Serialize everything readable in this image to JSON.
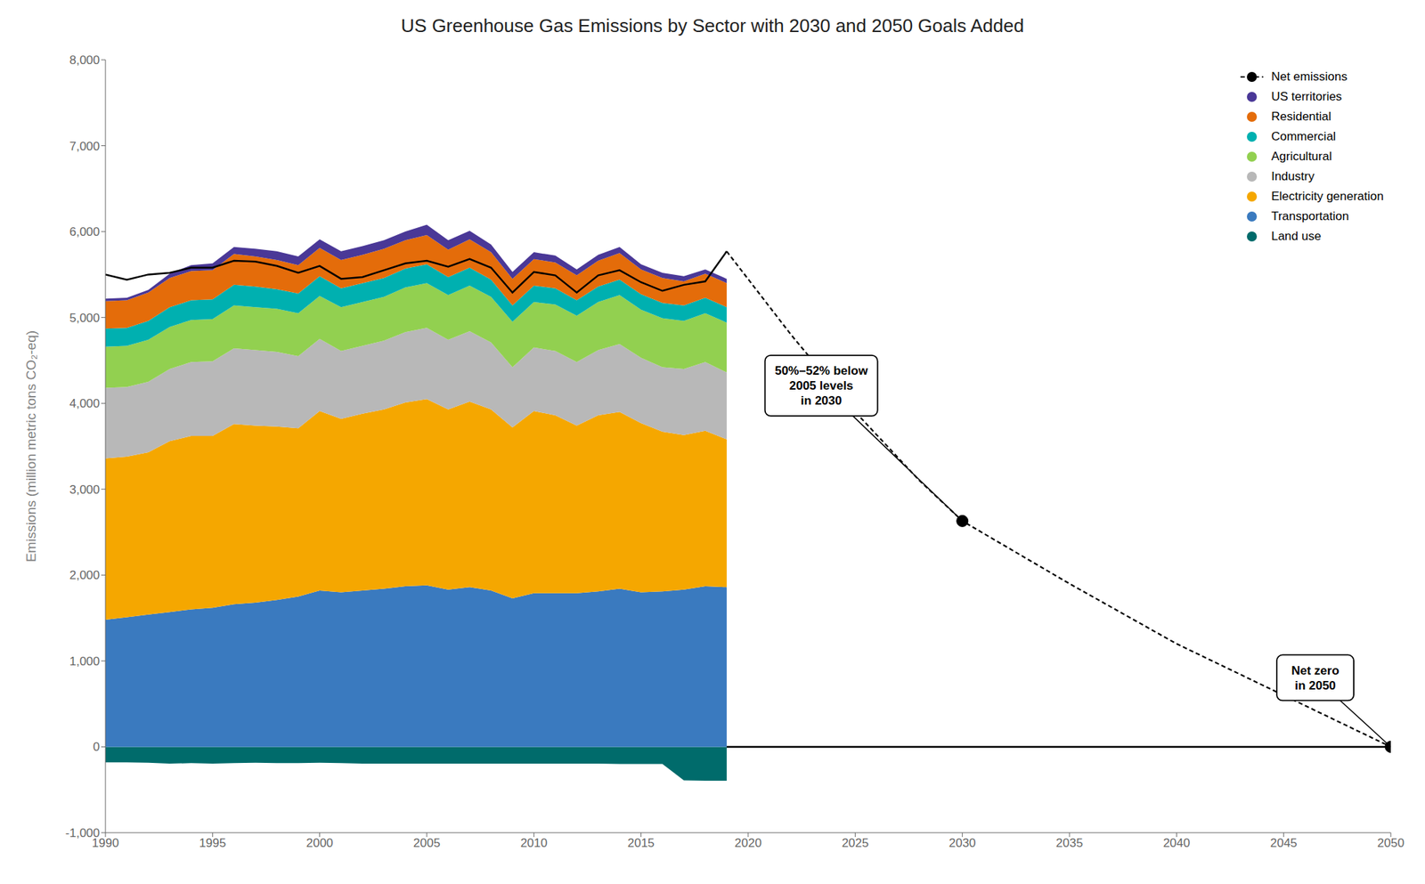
{
  "chart_data": {
    "type": "area",
    "title": "US Greenhouse Gas Emissions by Sector with 2030 and 2050 Goals Added",
    "y_label": "Emissions (million metric tons CO₂-eq)",
    "stacked": true,
    "grid": false,
    "legend": "upper right",
    "x": [
      1990,
      1991,
      1992,
      1993,
      1994,
      1995,
      1996,
      1997,
      1998,
      1999,
      2000,
      2001,
      2002,
      2003,
      2004,
      2005,
      2006,
      2007,
      2008,
      2009,
      2010,
      2011,
      2012,
      2013,
      2014,
      2015,
      2016,
      2017,
      2018,
      2019
    ],
    "series": [
      {
        "name": "Net emissions",
        "type": "line",
        "line_style": "solid",
        "color": "#000000",
        "values": [
          5500,
          5440,
          5500,
          5520,
          5580,
          5580,
          5660,
          5650,
          5600,
          5520,
          5600,
          5450,
          5470,
          5550,
          5630,
          5660,
          5590,
          5680,
          5580,
          5290,
          5530,
          5490,
          5290,
          5490,
          5550,
          5410,
          5310,
          5380,
          5420,
          5770
        ]
      },
      {
        "name": "US territories",
        "type": "area",
        "color": "#4a3897",
        "values": [
          30,
          30,
          30,
          50,
          70,
          80,
          80,
          90,
          100,
          100,
          100,
          100,
          100,
          100,
          100,
          120,
          110,
          100,
          90,
          80,
          80,
          80,
          70,
          70,
          70,
          60,
          60,
          60,
          50,
          50
        ]
      },
      {
        "name": "Residential",
        "type": "area",
        "color": "#e46c0a",
        "values": [
          320,
          320,
          330,
          340,
          340,
          340,
          360,
          350,
          340,
          330,
          330,
          330,
          330,
          340,
          330,
          340,
          320,
          330,
          320,
          310,
          310,
          300,
          290,
          300,
          310,
          290,
          290,
          280,
          280,
          280
        ]
      },
      {
        "name": "Commercial",
        "type": "area",
        "color": "#00b0b0",
        "values": [
          210,
          210,
          220,
          230,
          230,
          230,
          240,
          240,
          230,
          230,
          230,
          220,
          220,
          220,
          220,
          220,
          210,
          210,
          200,
          190,
          190,
          190,
          180,
          180,
          180,
          180,
          180,
          180,
          180,
          180
        ]
      },
      {
        "name": "Agricultural",
        "type": "area",
        "color": "#92d050",
        "values": [
          480,
          480,
          490,
          490,
          490,
          490,
          500,
          500,
          500,
          500,
          500,
          510,
          510,
          510,
          520,
          520,
          520,
          530,
          530,
          530,
          530,
          540,
          540,
          560,
          570,
          560,
          570,
          560,
          570,
          580
        ]
      },
      {
        "name": "Industry",
        "type": "area",
        "color": "#b8b8b8",
        "values": [
          820,
          810,
          820,
          840,
          860,
          870,
          880,
          880,
          870,
          840,
          840,
          790,
          790,
          800,
          820,
          830,
          810,
          820,
          780,
          700,
          740,
          750,
          740,
          760,
          790,
          760,
          750,
          770,
          800,
          780
        ]
      },
      {
        "name": "Electricity generation",
        "type": "area",
        "color": "#f5a700",
        "values": [
          1880,
          1870,
          1890,
          1990,
          2020,
          2000,
          2100,
          2060,
          2020,
          1960,
          2090,
          2020,
          2060,
          2090,
          2140,
          2170,
          2100,
          2160,
          2110,
          1990,
          2120,
          2070,
          1950,
          2050,
          2060,
          1970,
          1860,
          1800,
          1810,
          1720
        ]
      },
      {
        "name": "Transportation",
        "type": "area",
        "color": "#3a7abf",
        "values": [
          1480,
          1510,
          1540,
          1570,
          1600,
          1620,
          1660,
          1680,
          1710,
          1750,
          1820,
          1800,
          1820,
          1840,
          1870,
          1880,
          1830,
          1860,
          1820,
          1730,
          1790,
          1790,
          1790,
          1810,
          1840,
          1800,
          1810,
          1830,
          1870,
          1860
        ]
      },
      {
        "name": "Land use",
        "type": "area",
        "color": "#006b6b",
        "values": [
          -180,
          -180,
          -185,
          -195,
          -190,
          -195,
          -190,
          -185,
          -190,
          -190,
          -185,
          -190,
          -195,
          -195,
          -195,
          -195,
          -195,
          -195,
          -195,
          -195,
          -195,
          -195,
          -195,
          -195,
          -200,
          -200,
          -200,
          -390,
          -395,
          -395
        ]
      },
      {
        "type": "line",
        "line_style": "dashed",
        "color": "#000000",
        "x": [
          2019,
          2022,
          2025,
          2028,
          2030,
          2035,
          2040,
          2045,
          2050
        ],
        "values": [
          5770,
          4800,
          3900,
          3100,
          2630,
          1900,
          1200,
          600,
          0
        ]
      },
      {
        "type": "scatter",
        "marker": "circle",
        "color": "#000000",
        "x": [
          2030,
          2050
        ],
        "values": [
          2630,
          0
        ]
      },
      {
        "type": "line",
        "line_style": "solid",
        "color": "#000000",
        "x": [
          2019,
          2050
        ],
        "values": [
          0,
          0
        ]
      }
    ],
    "annotations": [
      {
        "text": "50%–52% below\n2005 levels\nin 2030",
        "x": 2030,
        "y": 2630
      },
      {
        "text": "Net zero\nin 2050",
        "x": 2050,
        "y": 0
      }
    ],
    "xlim": [
      1990,
      2050
    ],
    "xticks": [
      1990,
      1995,
      2000,
      2005,
      2010,
      2015,
      2020,
      2025,
      2030,
      2035,
      2040,
      2045,
      2050
    ],
    "ylim": [
      -1000,
      8000
    ],
    "yticks": [
      {
        "value": -1000,
        "label": "-1,000"
      },
      0,
      {
        "value": 1000,
        "label": "1,000"
      },
      {
        "value": 2000,
        "label": "2,000"
      },
      {
        "value": 3000,
        "label": "3,000"
      },
      {
        "value": 4000,
        "label": "4,000"
      },
      {
        "value": 5000,
        "label": "5,000"
      },
      {
        "value": 6000,
        "label": "6,000"
      },
      {
        "value": 7000,
        "label": "7,000"
      },
      {
        "value": 8000,
        "label": "8,000"
      }
    ]
  }
}
